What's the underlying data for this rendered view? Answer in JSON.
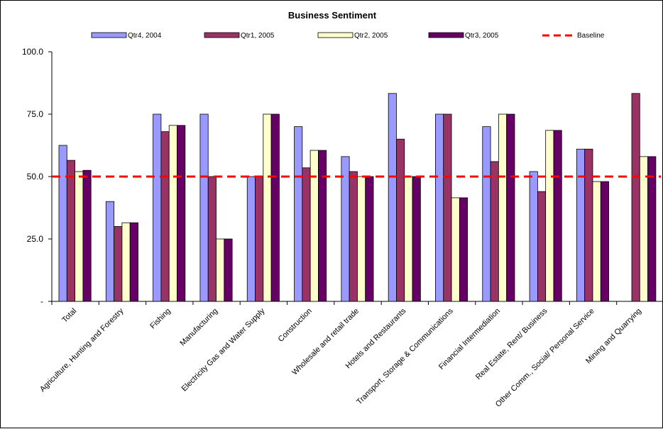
{
  "chart_data": {
    "type": "bar",
    "title": "Business Sentiment",
    "categories": [
      "Total",
      "Agriculture, Hunting and Forestry",
      "Fishing",
      "Manufacturing",
      "Electricity Gas and Water Supply",
      "Construction",
      "Wholesale and retail trade",
      "Hotels and Restaurants",
      "Transport, Storage & Communications",
      "Financial Intermediation",
      "Real Estate, Rent/ Business",
      "Other Comm., Social/ Personal Service",
      "Mining and Quarrying"
    ],
    "series": [
      {
        "name": "Qtr4, 2004",
        "color": "#9999FF",
        "values": [
          62.5,
          40.0,
          75.0,
          75.0,
          50.0,
          70.0,
          58.0,
          83.3,
          75.0,
          70.0,
          52.0,
          61.0,
          null
        ]
      },
      {
        "name": "Qtr1, 2005",
        "color": "#993366",
        "values": [
          56.5,
          30.0,
          68.0,
          50.0,
          50.0,
          53.5,
          52.0,
          65.0,
          75.0,
          56.0,
          44.0,
          61.0,
          83.3
        ]
      },
      {
        "name": "Qtr2, 2005",
        "color": "#FFFFCC",
        "values": [
          52.0,
          31.5,
          70.5,
          25.0,
          75.0,
          60.5,
          50.0,
          50.0,
          41.5,
          75.0,
          68.5,
          48.0,
          58.0
        ]
      },
      {
        "name": "Qtr3, 2005",
        "color": "#660066",
        "values": [
          52.5,
          31.5,
          70.5,
          25.0,
          75.0,
          60.5,
          50.0,
          50.0,
          41.5,
          75.0,
          68.5,
          48.0,
          58.0
        ]
      }
    ],
    "baseline": {
      "name": "Baseline",
      "value": 50,
      "color": "#FF0000"
    },
    "ylim": [
      0,
      100
    ],
    "yticks": [
      {
        "value": 100,
        "label": "100.0"
      },
      {
        "value": 75,
        "label": "75.0"
      },
      {
        "value": 50,
        "label": "50.0"
      },
      {
        "value": 25,
        "label": "25.0"
      },
      {
        "value": 0,
        "label": "-"
      }
    ],
    "grid": false,
    "legend": "top"
  }
}
